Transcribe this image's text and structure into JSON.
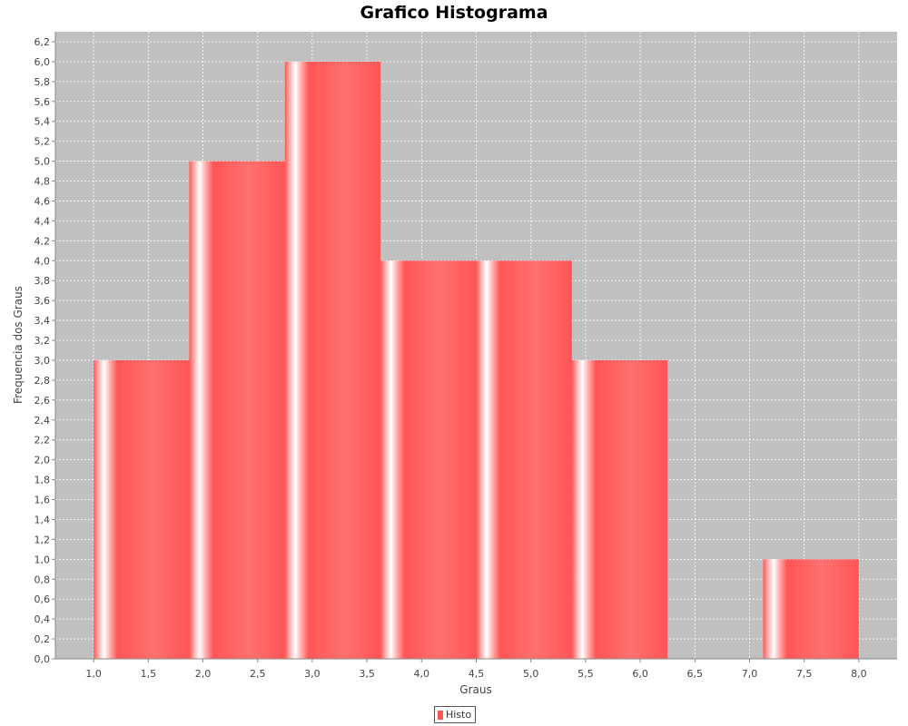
{
  "chart_data": {
    "type": "bar",
    "title": "Grafico Histograma",
    "xlabel": "Graus",
    "ylabel": "Frequencia dos Graus",
    "xlim": [
      0.65,
      8.35
    ],
    "ylim": [
      0,
      6.3
    ],
    "grid": true,
    "legend_position": "bottom-center",
    "x_ticks": [
      "1,0",
      "1,5",
      "2,0",
      "2,5",
      "3,0",
      "3,5",
      "4,0",
      "4,5",
      "5,0",
      "5,5",
      "6,0",
      "6,5",
      "7,0",
      "7,5",
      "8,0"
    ],
    "y_ticks": [
      "0,0",
      "0,2",
      "0,4",
      "0,6",
      "0,8",
      "1,0",
      "1,2",
      "1,4",
      "1,6",
      "1,8",
      "2,0",
      "2,2",
      "2,4",
      "2,6",
      "2,8",
      "3,0",
      "3,2",
      "3,4",
      "3,6",
      "3,8",
      "4,0",
      "4,2",
      "4,4",
      "4,6",
      "4,8",
      "5,0",
      "5,2",
      "5,4",
      "5,6",
      "5,8",
      "6,0",
      "6,2"
    ],
    "series": [
      {
        "name": "Histo",
        "color": "#ff5555",
        "bins": [
          {
            "start": 1.0,
            "end": 1.875,
            "value": 3
          },
          {
            "start": 1.875,
            "end": 2.75,
            "value": 5
          },
          {
            "start": 2.75,
            "end": 3.625,
            "value": 6
          },
          {
            "start": 3.625,
            "end": 4.5,
            "value": 4
          },
          {
            "start": 4.5,
            "end": 5.375,
            "value": 4
          },
          {
            "start": 5.375,
            "end": 6.25,
            "value": 3
          },
          {
            "start": 6.25,
            "end": 7.125,
            "value": 0
          },
          {
            "start": 7.125,
            "end": 8.0,
            "value": 1
          }
        ]
      }
    ]
  }
}
